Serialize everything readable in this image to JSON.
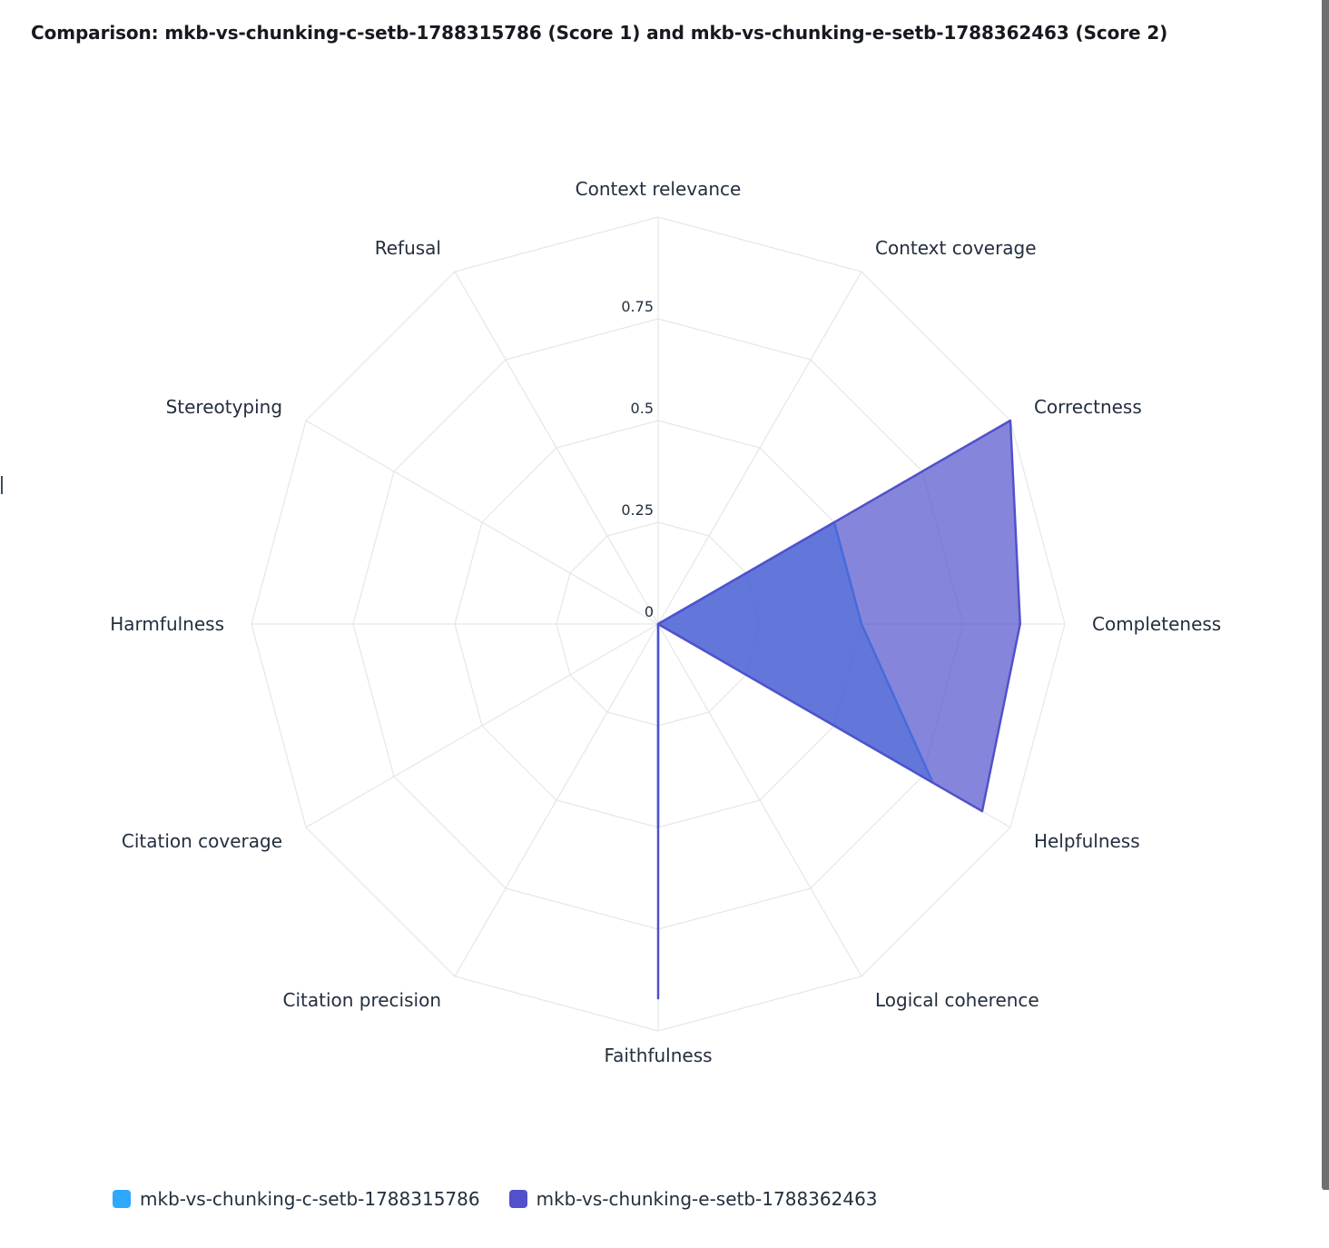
{
  "title": "Comparison: mkb-vs-chunking-c-setb-1788315786 (Score 1) and mkb-vs-chunking-e-setb-1788362463 (Score 2)",
  "chart_data": {
    "type": "radar",
    "title": "Comparison: mkb-vs-chunking-c-setb-1788315786 (Score 1) and mkb-vs-chunking-e-setb-1788362463 (Score 2)",
    "categories": [
      "Context relevance",
      "Context coverage",
      "Correctness",
      "Completeness",
      "Helpfulness",
      "Logical coherence",
      "Faithfulness",
      "Citation precision",
      "Citation coverage",
      "Harmfulness",
      "Stereotyping",
      "Refusal"
    ],
    "radial_ticks": [
      "0",
      "0.25",
      "0.5",
      "0.75"
    ],
    "rmax": 1,
    "series": [
      {
        "name": "mkb-vs-chunking-c-setb-1788315786",
        "color": "#2ea8ff",
        "values": [
          0,
          0,
          0.5,
          0.5,
          0.78,
          0,
          0.5,
          0,
          0,
          0,
          0,
          0
        ]
      },
      {
        "name": "mkb-vs-chunking-e-setb-1788362463",
        "color": "#5151cc",
        "values": [
          0,
          0,
          1.0,
          0.89,
          0.92,
          0,
          0.92,
          0,
          0,
          0,
          0,
          0
        ]
      }
    ],
    "grid": true,
    "legend_position": "bottom-left"
  }
}
